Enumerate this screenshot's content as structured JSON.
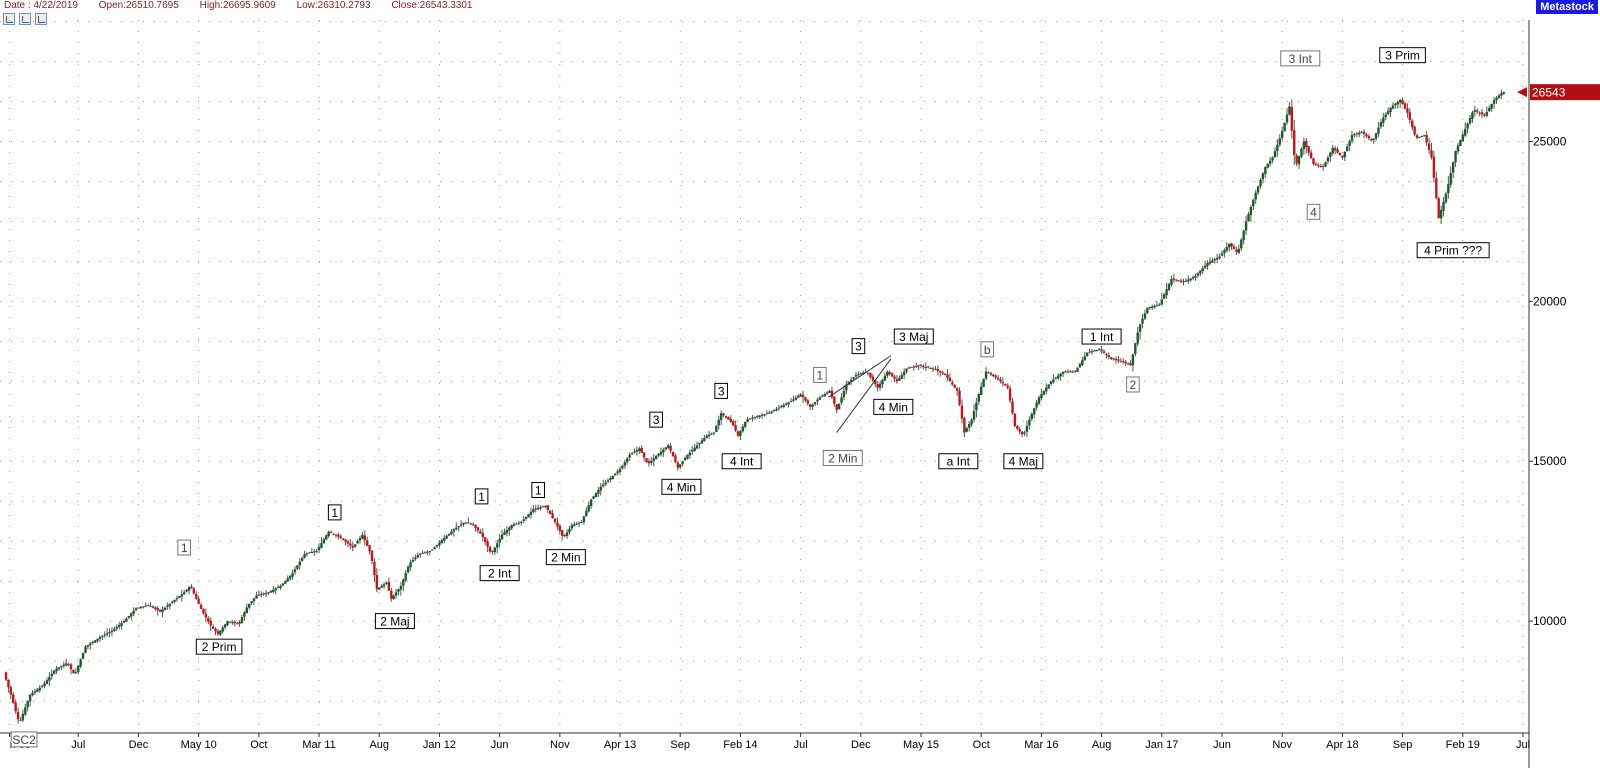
{
  "header": {
    "date": "Date : 4/22/2019",
    "open": "Open:26510.7695",
    "high": "High:26695.9609",
    "low": "Low:26310.2793",
    "close": "Close:26543.3301"
  },
  "brand": "Metastock",
  "toolbar_icons": [
    "chart-zoom-icon",
    "chart-compare-icon",
    "chart-tool-icon"
  ],
  "colors": {
    "up": "#1a5c2a",
    "down": "#c01818",
    "price_tag": "#b01010",
    "brand": "#1a1ae0"
  },
  "chart_data": {
    "type": "candlestick",
    "ylim": [
      6500,
      28800
    ],
    "y_ticks": [
      10000,
      15000,
      20000,
      25000
    ],
    "y_tick_labels": [
      "10000",
      "15000",
      "20000",
      "25000"
    ],
    "last_price_label": "26543",
    "last_price": 26543,
    "grid": true,
    "x_ticks": [
      {
        "label": "n 09",
        "t": 0.3
      },
      {
        "label": "Jul",
        "t": 6
      },
      {
        "label": "Dec",
        "t": 11
      },
      {
        "label": "May 10",
        "t": 16
      },
      {
        "label": "Oct",
        "t": 21
      },
      {
        "label": "Mar 11",
        "t": 26
      },
      {
        "label": "Aug",
        "t": 31
      },
      {
        "label": "Jan 12",
        "t": 36
      },
      {
        "label": "Jun",
        "t": 41
      },
      {
        "label": "Nov",
        "t": 46
      },
      {
        "label": "Apr 13",
        "t": 51
      },
      {
        "label": "Sep",
        "t": 56
      },
      {
        "label": "Feb 14",
        "t": 61
      },
      {
        "label": "Jul",
        "t": 66
      },
      {
        "label": "Dec",
        "t": 71
      },
      {
        "label": "May 15",
        "t": 76
      },
      {
        "label": "Oct",
        "t": 81
      },
      {
        "label": "Mar 16",
        "t": 86
      },
      {
        "label": "Aug",
        "t": 91
      },
      {
        "label": "Jan 17",
        "t": 96
      },
      {
        "label": "Jun",
        "t": 101
      },
      {
        "label": "Nov",
        "t": 106
      },
      {
        "label": "Apr 18",
        "t": 111
      },
      {
        "label": "Sep",
        "t": 116
      },
      {
        "label": "Feb 19",
        "t": 121
      },
      {
        "label": "Jul",
        "t": 126
      }
    ],
    "path": [
      [
        0,
        8400
      ],
      [
        0.6,
        7700
      ],
      [
        1.3,
        6800
      ],
      [
        2.2,
        7700
      ],
      [
        3.3,
        8000
      ],
      [
        4.3,
        8500
      ],
      [
        5.3,
        8700
      ],
      [
        5.9,
        8300
      ],
      [
        6.8,
        9200
      ],
      [
        8,
        9500
      ],
      [
        9,
        9700
      ],
      [
        10,
        10000
      ],
      [
        11,
        10400
      ],
      [
        12,
        10500
      ],
      [
        13,
        10300
      ],
      [
        14,
        10600
      ],
      [
        15,
        10900
      ],
      [
        15.5,
        11100
      ],
      [
        16.5,
        10300
      ],
      [
        17.3,
        9800
      ],
      [
        17.8,
        9600
      ],
      [
        18.6,
        10000
      ],
      [
        19.5,
        9900
      ],
      [
        20.3,
        10500
      ],
      [
        21,
        10800
      ],
      [
        22,
        10900
      ],
      [
        23,
        11100
      ],
      [
        24,
        11500
      ],
      [
        25,
        12100
      ],
      [
        26,
        12200
      ],
      [
        27,
        12800
      ],
      [
        28,
        12600
      ],
      [
        29,
        12300
      ],
      [
        29.8,
        12700
      ],
      [
        30.5,
        12100
      ],
      [
        31,
        11000
      ],
      [
        31.8,
        11200
      ],
      [
        32.2,
        10700
      ],
      [
        33,
        11100
      ],
      [
        33.7,
        11800
      ],
      [
        34.5,
        12100
      ],
      [
        35.5,
        12200
      ],
      [
        36.6,
        12600
      ],
      [
        37.5,
        12900
      ],
      [
        38.3,
        13100
      ],
      [
        39,
        13000
      ],
      [
        39.7,
        12700
      ],
      [
        40.5,
        12100
      ],
      [
        41.4,
        12700
      ],
      [
        42.2,
        13000
      ],
      [
        43,
        13100
      ],
      [
        44,
        13500
      ],
      [
        45,
        13600
      ],
      [
        45.8,
        13100
      ],
      [
        46.5,
        12600
      ],
      [
        47.2,
        13000
      ],
      [
        48,
        13100
      ],
      [
        48.8,
        13800
      ],
      [
        49.6,
        14200
      ],
      [
        50.5,
        14500
      ],
      [
        51.3,
        14800
      ],
      [
        52,
        15200
      ],
      [
        52.8,
        15400
      ],
      [
        53.5,
        14900
      ],
      [
        54.3,
        15200
      ],
      [
        55.2,
        15500
      ],
      [
        56,
        14800
      ],
      [
        56.8,
        15200
      ],
      [
        57.6,
        15500
      ],
      [
        58.4,
        15800
      ],
      [
        59,
        15900
      ],
      [
        59.6,
        16500
      ],
      [
        60.5,
        16200
      ],
      [
        61,
        15800
      ],
      [
        61.7,
        16300
      ],
      [
        62.5,
        16400
      ],
      [
        63.5,
        16500
      ],
      [
        64.5,
        16700
      ],
      [
        65.5,
        16900
      ],
      [
        66.2,
        17100
      ],
      [
        67,
        16700
      ],
      [
        67.8,
        17000
      ],
      [
        68.6,
        17200
      ],
      [
        69.2,
        16600
      ],
      [
        70,
        17400
      ],
      [
        70.8,
        17700
      ],
      [
        71.7,
        17800
      ],
      [
        72.6,
        17300
      ],
      [
        73.4,
        17800
      ],
      [
        74.2,
        17500
      ],
      [
        75,
        17900
      ],
      [
        76,
        18000
      ],
      [
        77.2,
        17900
      ],
      [
        78.2,
        17700
      ],
      [
        79.2,
        17200
      ],
      [
        79.8,
        15900
      ],
      [
        80.4,
        16300
      ],
      [
        81,
        17100
      ],
      [
        81.6,
        17800
      ],
      [
        82.5,
        17600
      ],
      [
        83.4,
        17300
      ],
      [
        84,
        16100
      ],
      [
        84.7,
        15800
      ],
      [
        85.3,
        16400
      ],
      [
        86,
        17000
      ],
      [
        87,
        17500
      ],
      [
        88,
        17800
      ],
      [
        89,
        17800
      ],
      [
        90,
        18400
      ],
      [
        91,
        18500
      ],
      [
        92,
        18200
      ],
      [
        93,
        18100
      ],
      [
        93.6,
        18000
      ],
      [
        94.3,
        19200
      ],
      [
        95,
        19800
      ],
      [
        96,
        19900
      ],
      [
        97,
        20700
      ],
      [
        98,
        20600
      ],
      [
        99,
        20800
      ],
      [
        100,
        21200
      ],
      [
        101,
        21400
      ],
      [
        101.8,
        21800
      ],
      [
        102.5,
        21500
      ],
      [
        103.2,
        22500
      ],
      [
        104,
        23400
      ],
      [
        104.8,
        24200
      ],
      [
        105.4,
        24500
      ],
      [
        106.1,
        25200
      ],
      [
        106.8,
        26100
      ],
      [
        107.3,
        24200
      ],
      [
        108,
        25000
      ],
      [
        108.8,
        24300
      ],
      [
        109.6,
        24200
      ],
      [
        110.4,
        24800
      ],
      [
        111.2,
        24500
      ],
      [
        112,
        25200
      ],
      [
        112.8,
        25300
      ],
      [
        113.7,
        25000
      ],
      [
        114.5,
        25700
      ],
      [
        115.3,
        26100
      ],
      [
        116,
        26300
      ],
      [
        116.6,
        25900
      ],
      [
        117.3,
        25100
      ],
      [
        118,
        25200
      ],
      [
        118.6,
        24500
      ],
      [
        119.2,
        22600
      ],
      [
        119.9,
        23500
      ],
      [
        120.6,
        24700
      ],
      [
        121.3,
        25300
      ],
      [
        122.1,
        26000
      ],
      [
        123,
        25800
      ],
      [
        123.8,
        26300
      ],
      [
        124.5,
        26543
      ]
    ],
    "annotations": [
      {
        "label": "SC2",
        "t": 1.5,
        "v": 6300,
        "style": "gray"
      },
      {
        "label": "1",
        "t": 14.8,
        "v": 12300,
        "style": "gray"
      },
      {
        "label": "2 Prim",
        "t": 17.7,
        "v": 9200,
        "style": "black"
      },
      {
        "label": "1",
        "t": 27.3,
        "v": 13400,
        "style": "black"
      },
      {
        "label": "2 Maj",
        "t": 32.3,
        "v": 10000,
        "style": "black"
      },
      {
        "label": "1",
        "t": 39.5,
        "v": 13900,
        "style": "black"
      },
      {
        "label": "2 Int",
        "t": 41,
        "v": 11500,
        "style": "black"
      },
      {
        "label": "1",
        "t": 44.2,
        "v": 14100,
        "style": "black"
      },
      {
        "label": "2 Min",
        "t": 46.5,
        "v": 12000,
        "style": "black"
      },
      {
        "label": "3",
        "t": 54,
        "v": 16300,
        "style": "black"
      },
      {
        "label": "4 Min",
        "t": 56.1,
        "v": 14200,
        "style": "black"
      },
      {
        "label": "3",
        "t": 59.4,
        "v": 17200,
        "style": "black"
      },
      {
        "label": "4 Int",
        "t": 61.1,
        "v": 15000,
        "style": "black"
      },
      {
        "label": "1",
        "t": 67.6,
        "v": 17700,
        "style": "gray"
      },
      {
        "label": "2 Min",
        "t": 69.5,
        "v": 15100,
        "style": "gray"
      },
      {
        "label": "3",
        "t": 70.8,
        "v": 18600,
        "style": "black"
      },
      {
        "label": "4 Min",
        "t": 73.7,
        "v": 16700,
        "style": "black"
      },
      {
        "label": "3 Maj",
        "t": 75.4,
        "v": 18900,
        "style": "black"
      },
      {
        "label": "a Int",
        "t": 79.1,
        "v": 15000,
        "style": "black"
      },
      {
        "label": "b",
        "t": 81.5,
        "v": 18500,
        "style": "gray"
      },
      {
        "label": "4 Maj",
        "t": 84.5,
        "v": 15000,
        "style": "black"
      },
      {
        "label": "1 Int",
        "t": 91,
        "v": 18900,
        "style": "black"
      },
      {
        "label": "2",
        "t": 93.6,
        "v": 17400,
        "style": "gray"
      },
      {
        "label": "3 Int",
        "t": 107.5,
        "v": 27600,
        "style": "gray"
      },
      {
        "label": "4",
        "t": 108.6,
        "v": 22800,
        "style": "gray"
      },
      {
        "label": "3 Prim",
        "t": 116,
        "v": 27700,
        "style": "black"
      },
      {
        "label": "4 Prim ???",
        "t": 120.2,
        "v": 21600,
        "style": "black"
      }
    ],
    "trendlines": [
      [
        [
          69,
          15900
        ],
        [
          73.5,
          18200
        ]
      ],
      [
        [
          68.3,
          17000
        ],
        [
          73.5,
          18300
        ]
      ]
    ]
  }
}
